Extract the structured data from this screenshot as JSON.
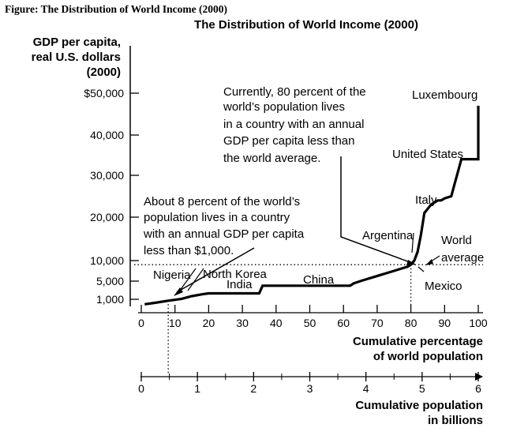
{
  "figure_caption": "Figure: The Distribution of World Income (2000)",
  "chart_data": {
    "type": "line",
    "title": "The Distribution of World Income (2000)",
    "ylabel": [
      "GDP per capita,",
      "real U.S. dollars",
      "(2000)"
    ],
    "xlabel": [
      "Cumulative percentage",
      "of world population"
    ],
    "x2label": [
      "Cumulative population",
      "in billions"
    ],
    "y_tick_values": [
      1000,
      5000,
      10000,
      20000,
      30000,
      40000,
      50000
    ],
    "y_tick_labels": [
      "1,000",
      "5,000",
      "10,000",
      "20,000",
      "30,000",
      "40,000",
      "$50,000"
    ],
    "x_tick_values": [
      0,
      10,
      20,
      30,
      40,
      50,
      60,
      70,
      80,
      90,
      100
    ],
    "x_tick_labels": [
      "0",
      "10",
      "20",
      "30",
      "40",
      "50",
      "60",
      "70",
      "80",
      "90",
      "100"
    ],
    "x2_tick_values": [
      0,
      1,
      2,
      3,
      4,
      5,
      6
    ],
    "x2_tick_labels": [
      "0",
      "1",
      "2",
      "3",
      "4",
      "5",
      "6"
    ],
    "xlim": [
      0,
      100
    ],
    "x2lim": [
      0,
      6
    ],
    "world_average": 9000,
    "markers": {
      "percent_at_1000": 8,
      "percent_below_world_average": 80
    },
    "series": [
      {
        "x": [
          1,
          4,
          8,
          12,
          15,
          18,
          20,
          25,
          30,
          35,
          36,
          40,
          45,
          50,
          55,
          60,
          62,
          63,
          65,
          67,
          69,
          71,
          73,
          75,
          77,
          79,
          80,
          81,
          82,
          83,
          84,
          85,
          86,
          87,
          88,
          89,
          90,
          92,
          93,
          94,
          95,
          96,
          97,
          98,
          99,
          100,
          100
        ],
        "y": [
          300,
          500,
          800,
          1100,
          1700,
          2100,
          2300,
          2300,
          2300,
          2300,
          4000,
          4000,
          4000,
          4000,
          4000,
          4000,
          4000,
          4500,
          5000,
          5500,
          6000,
          6500,
          7000,
          7500,
          8000,
          8500,
          9000,
          10000,
          12000,
          16000,
          21000,
          22000,
          23000,
          23500,
          24000,
          24000,
          24500,
          25000,
          28000,
          31000,
          34000,
          34000,
          34000,
          34000,
          34000,
          34000,
          47000
        ]
      }
    ],
    "annotations": [
      {
        "lines": [
          "Currently, 80 percent of the",
          "world’s population lives",
          "in a country with an annual",
          "GDP per capita less than",
          "the world average."
        ]
      },
      {
        "lines": [
          "About 8 percent of the world’s",
          "population lives in a country",
          "with an annual GDP per capita",
          "less than $1,000."
        ]
      }
    ],
    "country_labels": [
      "Luxembourg",
      "United States",
      "Italy",
      "Argentina",
      "Nigeria",
      "North Korea",
      "India",
      "China",
      "Mexico"
    ],
    "world_average_label": [
      "World",
      "average"
    ]
  }
}
